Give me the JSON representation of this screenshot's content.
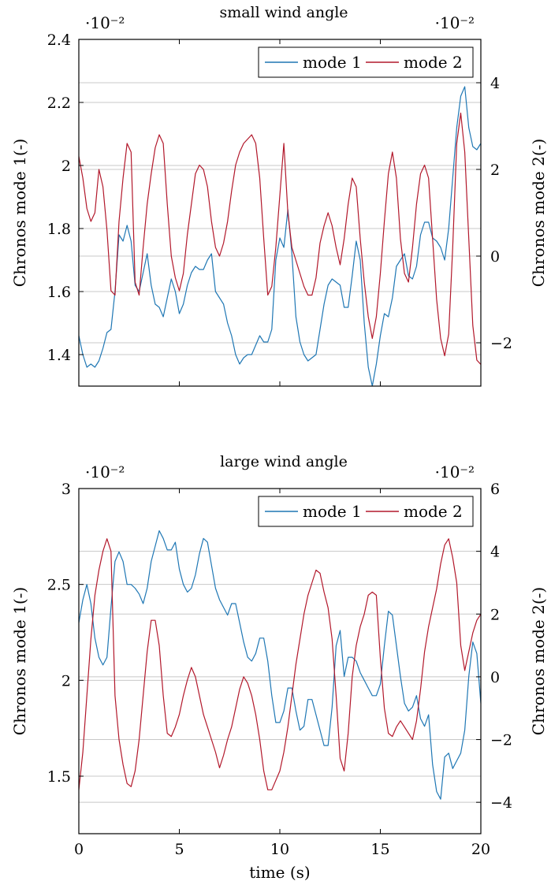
{
  "chart_data": [
    {
      "type": "line",
      "title": "small wind angle",
      "xlabel": "",
      "ylabel": "Chronos mode 1(-)",
      "ylabel_right": "Chronos mode 2(-)",
      "xlim": [
        0,
        20
      ],
      "ylim": [
        1.3,
        2.4
      ],
      "ylim_right": [
        -3,
        5
      ],
      "left_scale_label": "·10⁻²",
      "right_scale_label": "·10⁻²",
      "x_ticks": [
        0,
        5,
        10,
        15,
        20
      ],
      "x_ticks_labeled": false,
      "y_ticks": [
        "1.4",
        "1.6",
        "1.8",
        "2",
        "2.2",
        "2.4"
      ],
      "y_ticks_right": [
        "−2",
        "0",
        "2",
        "4"
      ],
      "legend": [
        "mode 1",
        "mode 2"
      ],
      "legend_position": "top-right",
      "grid": "horizontal",
      "series": [
        {
          "name": "mode 1",
          "axis": "left",
          "color": "#1f77b4",
          "x": [
            0,
            0.2,
            0.4,
            0.6,
            0.8,
            1.0,
            1.2,
            1.4,
            1.6,
            1.8,
            2.0,
            2.2,
            2.4,
            2.6,
            2.8,
            3.0,
            3.2,
            3.4,
            3.6,
            3.8,
            4.0,
            4.2,
            4.4,
            4.6,
            4.8,
            5.0,
            5.2,
            5.4,
            5.6,
            5.8,
            6.0,
            6.2,
            6.4,
            6.6,
            6.8,
            7.0,
            7.2,
            7.4,
            7.6,
            7.8,
            8.0,
            8.2,
            8.4,
            8.6,
            8.8,
            9.0,
            9.2,
            9.4,
            9.6,
            9.8,
            10.0,
            10.2,
            10.4,
            10.6,
            10.8,
            11.0,
            11.2,
            11.4,
            11.6,
            11.8,
            12.0,
            12.2,
            12.4,
            12.6,
            12.8,
            13.0,
            13.2,
            13.4,
            13.6,
            13.8,
            14.0,
            14.2,
            14.4,
            14.6,
            14.8,
            15.0,
            15.2,
            15.4,
            15.6,
            15.8,
            16.0,
            16.2,
            16.4,
            16.6,
            16.8,
            17.0,
            17.2,
            17.4,
            17.6,
            17.8,
            18.0,
            18.2,
            18.4,
            18.6,
            18.8,
            19.0,
            19.2,
            19.4,
            19.6,
            19.8,
            20.0
          ],
          "y": [
            1.46,
            1.4,
            1.36,
            1.37,
            1.36,
            1.38,
            1.42,
            1.47,
            1.48,
            1.6,
            1.78,
            1.76,
            1.81,
            1.76,
            1.62,
            1.6,
            1.66,
            1.72,
            1.62,
            1.56,
            1.55,
            1.52,
            1.58,
            1.64,
            1.6,
            1.53,
            1.56,
            1.62,
            1.66,
            1.68,
            1.67,
            1.67,
            1.7,
            1.72,
            1.6,
            1.58,
            1.56,
            1.5,
            1.46,
            1.4,
            1.37,
            1.39,
            1.4,
            1.4,
            1.43,
            1.46,
            1.44,
            1.44,
            1.48,
            1.7,
            1.77,
            1.74,
            1.86,
            1.72,
            1.52,
            1.44,
            1.4,
            1.38,
            1.39,
            1.4,
            1.48,
            1.56,
            1.62,
            1.64,
            1.63,
            1.62,
            1.55,
            1.55,
            1.65,
            1.76,
            1.7,
            1.5,
            1.36,
            1.3,
            1.37,
            1.46,
            1.53,
            1.52,
            1.58,
            1.68,
            1.7,
            1.72,
            1.65,
            1.64,
            1.68,
            1.78,
            1.82,
            1.82,
            1.77,
            1.76,
            1.74,
            1.7,
            1.8,
            1.96,
            2.12,
            2.22,
            2.25,
            2.12,
            2.06,
            2.05,
            2.07
          ]
        },
        {
          "name": "mode 2",
          "axis": "right",
          "color": "#b2182b",
          "x": [
            0,
            0.2,
            0.4,
            0.6,
            0.8,
            1.0,
            1.2,
            1.4,
            1.6,
            1.8,
            2.0,
            2.2,
            2.4,
            2.6,
            2.8,
            3.0,
            3.2,
            3.4,
            3.6,
            3.8,
            4.0,
            4.2,
            4.4,
            4.6,
            4.8,
            5.0,
            5.2,
            5.4,
            5.6,
            5.8,
            6.0,
            6.2,
            6.4,
            6.6,
            6.8,
            7.0,
            7.2,
            7.4,
            7.6,
            7.8,
            8.0,
            8.2,
            8.4,
            8.6,
            8.8,
            9.0,
            9.2,
            9.4,
            9.6,
            9.8,
            10.0,
            10.2,
            10.4,
            10.6,
            10.8,
            11.0,
            11.2,
            11.4,
            11.6,
            11.8,
            12.0,
            12.2,
            12.4,
            12.6,
            12.8,
            13.0,
            13.2,
            13.4,
            13.6,
            13.8,
            14.0,
            14.2,
            14.4,
            14.6,
            14.8,
            15.0,
            15.2,
            15.4,
            15.6,
            15.8,
            16.0,
            16.2,
            16.4,
            16.6,
            16.8,
            17.0,
            17.2,
            17.4,
            17.6,
            17.8,
            18.0,
            18.2,
            18.4,
            18.6,
            18.8,
            19.0,
            19.2,
            19.4,
            19.6,
            19.8,
            20.0
          ],
          "y": [
            2.3,
            1.8,
            1.1,
            0.8,
            1.0,
            2.0,
            1.6,
            0.6,
            -0.8,
            -0.9,
            0.8,
            1.8,
            2.6,
            2.4,
            -0.6,
            -0.9,
            0.2,
            1.2,
            1.9,
            2.5,
            2.8,
            2.6,
            1.2,
            0.0,
            -0.5,
            -0.8,
            -0.4,
            0.5,
            1.2,
            1.9,
            2.1,
            2.0,
            1.6,
            0.8,
            0.2,
            0.0,
            0.3,
            0.8,
            1.5,
            2.1,
            2.4,
            2.6,
            2.7,
            2.8,
            2.6,
            1.8,
            0.4,
            -0.9,
            -0.7,
            0.2,
            1.4,
            2.6,
            1.0,
            0.2,
            -0.1,
            -0.4,
            -0.7,
            -0.9,
            -0.9,
            -0.5,
            0.3,
            0.7,
            1.0,
            0.7,
            0.2,
            -0.2,
            0.4,
            1.2,
            1.8,
            1.6,
            0.4,
            -0.6,
            -1.4,
            -1.9,
            -1.4,
            -0.4,
            0.8,
            1.9,
            2.4,
            1.8,
            0.4,
            -0.4,
            -0.6,
            0.2,
            1.2,
            1.9,
            2.1,
            1.8,
            0.4,
            -1.0,
            -1.9,
            -2.3,
            -1.8,
            0.2,
            2.6,
            3.3,
            2.4,
            0.4,
            -1.6,
            -2.4,
            -2.5
          ]
        }
      ]
    },
    {
      "type": "line",
      "title": "large wind angle",
      "xlabel": "time (s)",
      "ylabel": "Chronos mode 1(-)",
      "ylabel_right": "Chronos mode 2(-)",
      "xlim": [
        0,
        20
      ],
      "ylim": [
        1.2,
        3.0
      ],
      "ylim_right": [
        -5,
        6
      ],
      "left_scale_label": "·10⁻²",
      "right_scale_label": "·10⁻²",
      "x_ticks": [
        "0",
        "5",
        "10",
        "15",
        "20"
      ],
      "x_ticks_labeled": true,
      "y_ticks": [
        "1.5",
        "2",
        "2.5",
        "3"
      ],
      "y_ticks_right": [
        "−4",
        "−2",
        "0",
        "2",
        "4",
        "6"
      ],
      "legend": [
        "mode 1",
        "mode 2"
      ],
      "legend_position": "top-right",
      "grid": "horizontal",
      "series": [
        {
          "name": "mode 1",
          "axis": "left",
          "color": "#1f77b4",
          "x": [
            0,
            0.2,
            0.4,
            0.6,
            0.8,
            1.0,
            1.2,
            1.4,
            1.6,
            1.8,
            2.0,
            2.2,
            2.4,
            2.6,
            2.8,
            3.0,
            3.2,
            3.4,
            3.6,
            3.8,
            4.0,
            4.2,
            4.4,
            4.6,
            4.8,
            5.0,
            5.2,
            5.4,
            5.6,
            5.8,
            6.0,
            6.2,
            6.4,
            6.6,
            6.8,
            7.0,
            7.2,
            7.4,
            7.6,
            7.8,
            8.0,
            8.2,
            8.4,
            8.6,
            8.8,
            9.0,
            9.2,
            9.4,
            9.6,
            9.8,
            10.0,
            10.2,
            10.4,
            10.6,
            10.8,
            11.0,
            11.2,
            11.4,
            11.6,
            11.8,
            12.0,
            12.2,
            12.4,
            12.6,
            12.8,
            13.0,
            13.2,
            13.4,
            13.6,
            13.8,
            14.0,
            14.2,
            14.4,
            14.6,
            14.8,
            15.0,
            15.2,
            15.4,
            15.6,
            15.8,
            16.0,
            16.2,
            16.4,
            16.6,
            16.8,
            17.0,
            17.2,
            17.4,
            17.6,
            17.8,
            18.0,
            18.2,
            18.4,
            18.6,
            18.8,
            19.0,
            19.2,
            19.4,
            19.6,
            19.8,
            20.0
          ],
          "y": [
            2.3,
            2.42,
            2.5,
            2.4,
            2.22,
            2.12,
            2.08,
            2.12,
            2.38,
            2.62,
            2.67,
            2.62,
            2.5,
            2.5,
            2.48,
            2.45,
            2.4,
            2.48,
            2.62,
            2.7,
            2.78,
            2.74,
            2.68,
            2.68,
            2.72,
            2.58,
            2.5,
            2.46,
            2.48,
            2.55,
            2.66,
            2.74,
            2.72,
            2.6,
            2.48,
            2.42,
            2.38,
            2.34,
            2.4,
            2.4,
            2.3,
            2.2,
            2.12,
            2.1,
            2.14,
            2.22,
            2.22,
            2.1,
            1.92,
            1.78,
            1.78,
            1.84,
            1.96,
            1.96,
            1.84,
            1.74,
            1.76,
            1.9,
            1.9,
            1.82,
            1.74,
            1.66,
            1.66,
            1.86,
            2.18,
            2.26,
            2.02,
            2.12,
            2.12,
            2.1,
            2.04,
            2.0,
            1.96,
            1.92,
            1.92,
            1.98,
            2.18,
            2.36,
            2.34,
            2.18,
            2.02,
            1.88,
            1.84,
            1.86,
            1.92,
            1.8,
            1.76,
            1.82,
            1.56,
            1.42,
            1.38,
            1.6,
            1.62,
            1.54,
            1.58,
            1.62,
            1.74,
            2.02,
            2.2,
            2.14,
            1.88
          ]
        },
        {
          "name": "mode 2",
          "axis": "right",
          "color": "#b2182b",
          "x": [
            0,
            0.2,
            0.4,
            0.6,
            0.8,
            1.0,
            1.2,
            1.4,
            1.6,
            1.8,
            2.0,
            2.2,
            2.4,
            2.6,
            2.8,
            3.0,
            3.2,
            3.4,
            3.6,
            3.8,
            4.0,
            4.2,
            4.4,
            4.6,
            4.8,
            5.0,
            5.2,
            5.4,
            5.6,
            5.8,
            6.0,
            6.2,
            6.4,
            6.6,
            6.8,
            7.0,
            7.2,
            7.4,
            7.6,
            7.8,
            8.0,
            8.2,
            8.4,
            8.6,
            8.8,
            9.0,
            9.2,
            9.4,
            9.6,
            9.8,
            10.0,
            10.2,
            10.4,
            10.6,
            10.8,
            11.0,
            11.2,
            11.4,
            11.6,
            11.8,
            12.0,
            12.2,
            12.4,
            12.6,
            12.8,
            13.0,
            13.2,
            13.4,
            13.6,
            13.8,
            14.0,
            14.2,
            14.4,
            14.6,
            14.8,
            15.0,
            15.2,
            15.4,
            15.6,
            15.8,
            16.0,
            16.2,
            16.4,
            16.6,
            16.8,
            17.0,
            17.2,
            17.4,
            17.6,
            17.8,
            18.0,
            18.2,
            18.4,
            18.6,
            18.8,
            19.0,
            19.2,
            19.4,
            19.6,
            19.8,
            20.0
          ],
          "y": [
            -3.6,
            -2.4,
            -0.6,
            1.2,
            2.6,
            3.4,
            4.0,
            4.4,
            4.0,
            -0.6,
            -2.0,
            -2.8,
            -3.4,
            -3.5,
            -3.0,
            -2.0,
            -0.6,
            0.8,
            1.8,
            1.8,
            1.0,
            -0.6,
            -1.8,
            -1.9,
            -1.6,
            -1.2,
            -0.6,
            -0.1,
            0.3,
            0.0,
            -0.6,
            -1.2,
            -1.6,
            -2.0,
            -2.4,
            -2.9,
            -2.5,
            -2.0,
            -1.6,
            -1.0,
            -0.4,
            0.0,
            -0.2,
            -0.6,
            -1.2,
            -2.0,
            -3.0,
            -3.6,
            -3.6,
            -3.3,
            -3.0,
            -2.4,
            -1.6,
            -0.6,
            0.4,
            1.2,
            2.0,
            2.6,
            3.0,
            3.4,
            3.3,
            2.7,
            2.2,
            1.2,
            -0.6,
            -2.6,
            -3.0,
            -1.8,
            0.0,
            1.0,
            1.6,
            2.0,
            2.6,
            2.7,
            2.6,
            0.6,
            -1.0,
            -1.8,
            -1.9,
            -1.6,
            -1.4,
            -1.6,
            -1.8,
            -2.0,
            -1.4,
            -0.4,
            0.8,
            1.6,
            2.2,
            2.8,
            3.6,
            4.2,
            4.4,
            3.8,
            3.0,
            1.0,
            0.2,
            0.8,
            1.4,
            1.8,
            2.0
          ]
        }
      ]
    }
  ]
}
